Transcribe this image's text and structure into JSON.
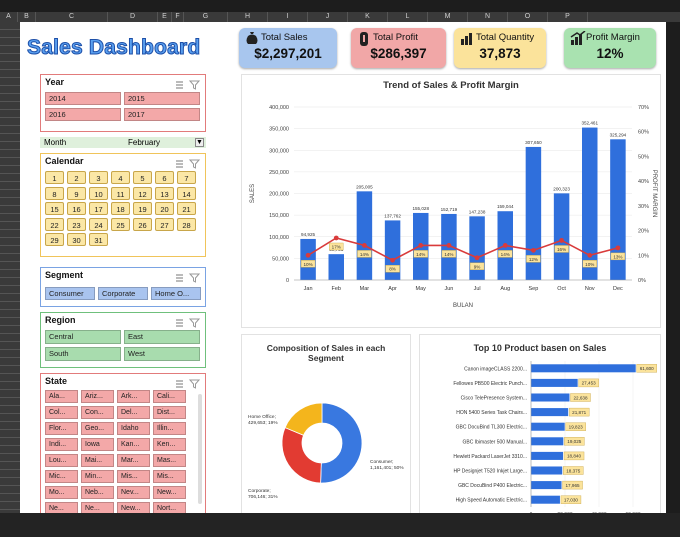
{
  "spreadsheet": {
    "columns": [
      "A",
      "B",
      "C",
      "D",
      "E",
      "F",
      "G",
      "H",
      "I",
      "J",
      "K",
      "L",
      "M",
      "N",
      "O",
      "P"
    ]
  },
  "dashboard": {
    "title": "Sales Dashboard"
  },
  "kpis": [
    {
      "label": "Total Sales",
      "value": "$2,297,201",
      "bg": "#a8c6ee",
      "icon": "money-bag-icon"
    },
    {
      "label": "Total Profit",
      "value": "$286,397",
      "bg": "#f1a7a7",
      "icon": "piggy-bank-icon"
    },
    {
      "label": "Total Quantity",
      "value": "37,873",
      "bg": "#fbe39b",
      "icon": "bar-chart-icon"
    },
    {
      "label": "Profit Margin",
      "value": "12%",
      "bg": "#a9e2b0",
      "icon": "growth-chart-icon"
    }
  ],
  "slicers": {
    "year": {
      "title": "Year",
      "items": [
        "2014",
        "2015",
        "2016",
        "2017"
      ]
    },
    "month": {
      "label": "Month",
      "value": "February"
    },
    "calendar": {
      "title": "Calendar",
      "days": [
        "1",
        "2",
        "3",
        "4",
        "5",
        "6",
        "7",
        "8",
        "9",
        "10",
        "11",
        "12",
        "13",
        "14",
        "15",
        "16",
        "17",
        "18",
        "19",
        "20",
        "21",
        "22",
        "23",
        "24",
        "25",
        "26",
        "27",
        "28",
        "29",
        "30",
        "31"
      ]
    },
    "segment": {
      "title": "Segment",
      "items": [
        "Consumer",
        "Corporate",
        "Home O..."
      ]
    },
    "region": {
      "title": "Region",
      "items": [
        "Central",
        "East",
        "South",
        "West"
      ]
    },
    "state": {
      "title": "State",
      "items": [
        "Ala...",
        "Ariz...",
        "Ark...",
        "Cali...",
        "Col...",
        "Con...",
        "Del...",
        "Dist...",
        "Flor...",
        "Geo...",
        "Idaho",
        "Illin...",
        "Indi...",
        "Iowa",
        "Kan...",
        "Ken...",
        "Lou...",
        "Mai...",
        "Mar...",
        "Mas...",
        "Mic...",
        "Min...",
        "Mis...",
        "Mis...",
        "Mo...",
        "Neb...",
        "Nev...",
        "New...",
        "Ne...",
        "Ne...",
        "New...",
        "Nort..."
      ]
    }
  },
  "trend_chart": {
    "title": "Trend of Sales & Profit Margin",
    "ylabel_left": "SALES",
    "ylabel_right": "PROFIT MARGIN",
    "xlabel": "BULAN"
  },
  "composition_chart": {
    "title_line1": "Composition of Sales in each",
    "title_line2": "Segment",
    "labels": [
      {
        "line1": "Home Office;",
        "line2": "429,653; 19%"
      },
      {
        "line1": "Consumer;",
        "line2": "1,161,401; 50%"
      },
      {
        "line1": "Corporate;",
        "line2": "706,146; 31%"
      }
    ]
  },
  "top10_chart": {
    "title": "Top 10 Product basen on Sales"
  },
  "chart_data": [
    {
      "type": "bar",
      "title": "Trend of Sales & Profit Margin",
      "xlabel": "BULAN",
      "ylabel": "SALES",
      "y2label": "PROFIT MARGIN",
      "categories": [
        "Jan",
        "Feb",
        "Mar",
        "Apr",
        "May",
        "Jun",
        "Jul",
        "Aug",
        "Sep",
        "Oct",
        "Nov",
        "Dec"
      ],
      "series": [
        {
          "values": [
            94925,
            59751,
            205005,
            137762,
            155028,
            152719,
            147238,
            159044,
            307650,
            200323,
            352461,
            325294
          ],
          "labels": [
            "94,925",
            "59,751",
            "205,005",
            "137,762",
            "155,028",
            "152,719",
            "147,238",
            "159,044",
            "307,650",
            "200,323",
            "352,461",
            "325,294"
          ],
          "color": "#2f6fdc"
        },
        {
          "values": [
            10,
            17,
            14,
            8,
            14,
            14,
            9,
            14,
            12,
            16,
            10,
            13
          ],
          "labels": [
            "10%",
            "17%",
            "14%",
            "8%",
            "14%",
            "14%",
            "9%",
            "14%",
            "12%",
            "16%",
            "10%",
            "13%"
          ],
          "color": "#d93b3b",
          "axis": "right"
        }
      ],
      "ylim": [
        0,
        400000
      ],
      "yticks": [
        "0",
        "50,000",
        "100,000",
        "150,000",
        "200,000",
        "250,000",
        "300,000",
        "350,000",
        "400,000"
      ],
      "y2lim": [
        0,
        70
      ],
      "y2ticks": [
        "0%",
        "10%",
        "20%",
        "30%",
        "40%",
        "50%",
        "60%",
        "70%"
      ]
    },
    {
      "type": "pie",
      "title": "Composition of Sales in each Segment",
      "categories": [
        "Consumer",
        "Corporate",
        "Home Office"
      ],
      "values": [
        1161401,
        706146,
        429653
      ],
      "colors": [
        "#3978e0",
        "#e23b32",
        "#f4b51c"
      ]
    },
    {
      "type": "bar",
      "orientation": "horizontal",
      "title": "Top 10 Product basen on Sales",
      "categories": [
        "Canon imageCLASS 2200...",
        "Fellowes PB500 Electric Punch...",
        "Cisco TelePresence System...",
        "HON 5400 Series Task Chairs...",
        "GBC DocuBind TL300 Electric...",
        "GBC Ibimaster 500 Manual...",
        "Hewlett Packard LaserJet 3310...",
        "HP Designjet T520 Inkjet Large...",
        "GBC DocuBind P400 Electric...",
        "High Speed Automatic Electric..."
      ],
      "values": [
        61600,
        27453,
        22638,
        21871,
        19823,
        19025,
        18840,
        18375,
        17965,
        17030
      ],
      "labels": [
        "61,600",
        "27,453",
        "22,638",
        "21,871",
        "19,823",
        "19,025",
        "18,840",
        "18,375",
        "17,965",
        "17,030"
      ],
      "xticks": [
        "0",
        "20,000",
        "40,000",
        "60,000"
      ],
      "xlim": [
        0,
        70000
      ],
      "color": "#2f6fdc"
    }
  ]
}
